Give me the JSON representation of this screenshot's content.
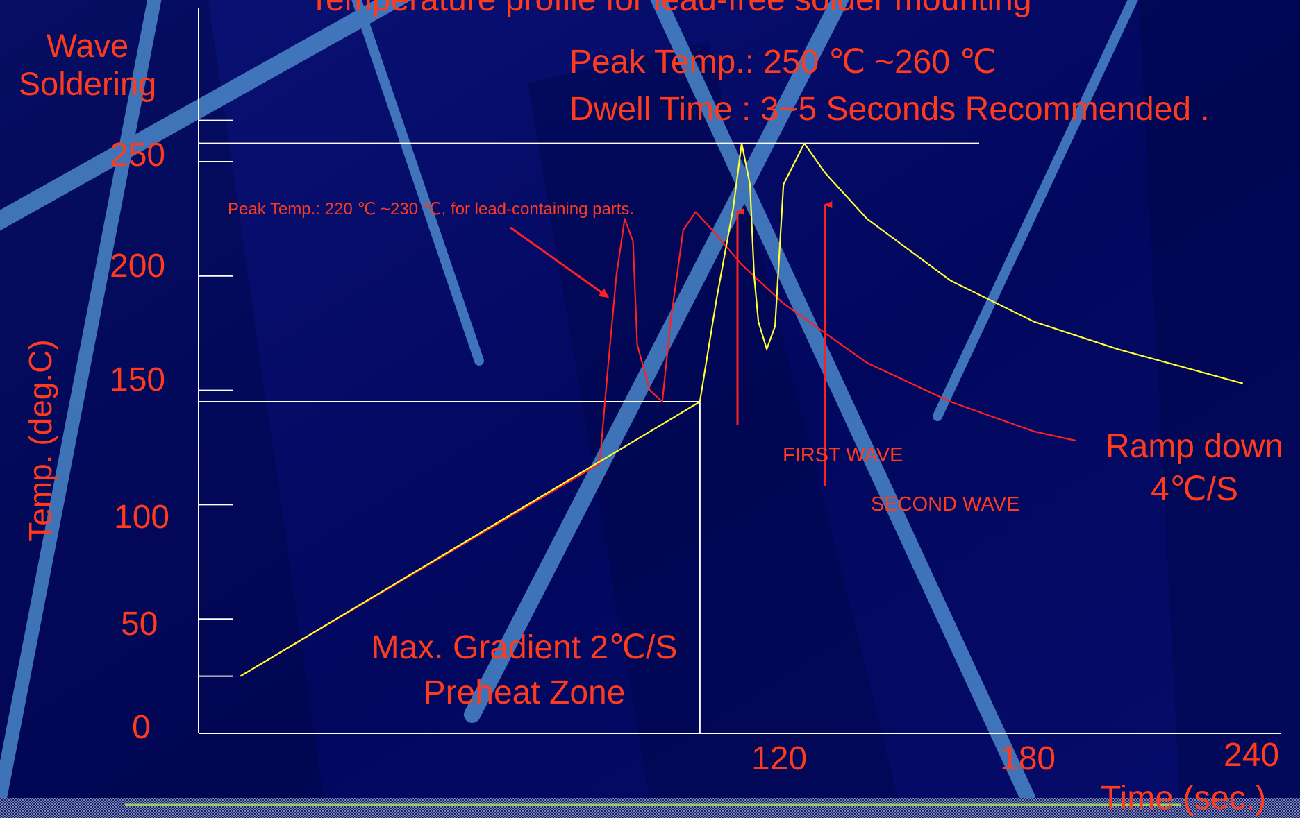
{
  "title": "Temperature profile for lead-free solder mounting",
  "process_label": "Wave Soldering",
  "y_axis_label": "Temp. (deg.C)",
  "x_axis_label": "Time (sec.)",
  "y_ticks": [
    "250",
    "200",
    "150",
    "100",
    "50",
    "0"
  ],
  "x_ticks": [
    "120",
    "180",
    "240"
  ],
  "annotations": {
    "peak_temp": "Peak Temp.:  250 ℃ ~260 ℃",
    "dwell_time": "Dwell Time : 3~5 Seconds Recommended .",
    "lead_containing": "Peak Temp.:  220 ℃ ~230 ℃, for lead-containing parts.",
    "first_wave": "FIRST WAVE",
    "second_wave": "SECOND WAVE",
    "ramp_down_line1": "Ramp down",
    "ramp_down_line2": "4℃/S",
    "gradient": "Max. Gradient 2℃/S",
    "preheat": "Preheat Zone"
  },
  "colors": {
    "background": "#02075e",
    "text": "#ff3b1e",
    "lead_free_curve": "#ffff33",
    "lead_containing_curve": "#ff2020",
    "guide_lines": "#ffffff",
    "beams": "#4f8fd0"
  },
  "chart_data": {
    "type": "line",
    "title": "Temperature profile for lead-free solder mounting",
    "xlabel": "Time (sec.)",
    "ylabel": "Temp. (deg.C)",
    "xlim": [
      0,
      260
    ],
    "ylim": [
      0,
      260
    ],
    "grid": false,
    "series": [
      {
        "points": [
          [
            10,
            25
          ],
          [
            120,
            145
          ],
          [
            124,
            190
          ],
          [
            128,
            230
          ],
          [
            130,
            258
          ],
          [
            132,
            240
          ],
          [
            133,
            200
          ],
          [
            134,
            180
          ],
          [
            136,
            168
          ],
          [
            138,
            178
          ],
          [
            140,
            240
          ],
          [
            145,
            258
          ],
          [
            150,
            245
          ],
          [
            160,
            225
          ],
          [
            180,
            198
          ],
          [
            200,
            180
          ],
          [
            220,
            168
          ],
          [
            240,
            158
          ],
          [
            250,
            153
          ]
        ]
      },
      {
        "points": [
          [
            10,
            25
          ],
          [
            96,
            118
          ],
          [
            98,
            160
          ],
          [
            100,
            200
          ],
          [
            102,
            225
          ],
          [
            104,
            215
          ],
          [
            105,
            170
          ],
          [
            108,
            150
          ],
          [
            111,
            145
          ],
          [
            113,
            180
          ],
          [
            116,
            220
          ],
          [
            119,
            228
          ],
          [
            123,
            220
          ],
          [
            130,
            205
          ],
          [
            140,
            188
          ],
          [
            160,
            162
          ],
          [
            180,
            145
          ],
          [
            200,
            132
          ],
          [
            210,
            128
          ]
        ]
      }
    ],
    "reference_lines": {
      "peak_y": 258,
      "preheat_end_y": 145,
      "preheat_end_x": 120
    },
    "arrows": {
      "first_wave_x": 129,
      "second_wave_x": 150,
      "lead_note_points_x": 98
    }
  }
}
